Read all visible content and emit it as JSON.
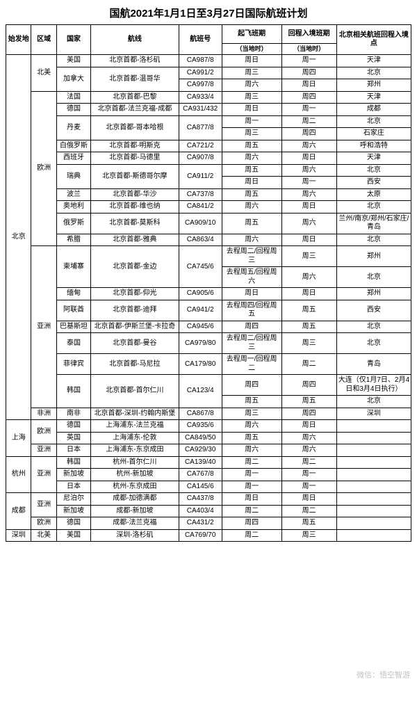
{
  "title": "国航2021年1月1日至3月27日国际航班计划",
  "watermark": "微信：悟空智游",
  "headers": {
    "origin": "始发地",
    "region": "区域",
    "country": "国家",
    "route": "航线",
    "flight": "航班号",
    "dep": "起飞班期",
    "dep_sub": "（当地时）",
    "ret": "回程入境班期",
    "ret_sub": "（当地时）",
    "entry": "北京相关航班回程入境点"
  },
  "rows": [
    {
      "origin": "北京",
      "origin_rs": 25,
      "region": "北美",
      "region_rs": 3,
      "country": "美国",
      "country_rs": 1,
      "route": "北京首都-洛杉矶",
      "route_rs": 1,
      "flight": "CA987/8",
      "dep": "周日",
      "ret": "周一",
      "entry": "天津"
    },
    {
      "country": "加拿大",
      "country_rs": 2,
      "route": "北京首都-温哥华",
      "route_rs": 2,
      "flight": "CA991/2",
      "dep": "周三",
      "ret": "周四",
      "entry": "北京"
    },
    {
      "flight": "CA997/8",
      "dep": "周六",
      "ret": "周日",
      "entry": "郑州"
    },
    {
      "region": "欧洲",
      "region_rs": 12,
      "country": "法国",
      "country_rs": 1,
      "route": "北京首都-巴黎",
      "route_rs": 1,
      "flight": "CA933/4",
      "dep": "周三",
      "ret": "周四",
      "entry": "天津"
    },
    {
      "country": "德国",
      "country_rs": 1,
      "route": "北京首都-法兰克福-成都",
      "route_rs": 1,
      "flight": "CA931/432",
      "dep": "周日",
      "ret": "周一",
      "entry": "成都"
    },
    {
      "country": "丹麦",
      "country_rs": 2,
      "route": "北京首都-哥本哈根",
      "route_rs": 2,
      "flight": "CA877/8",
      "flight_rs": 2,
      "dep": "周一",
      "ret": "周二",
      "entry": "北京"
    },
    {
      "dep": "周三",
      "ret": "周四",
      "entry": "石家庄"
    },
    {
      "country": "白俄罗斯",
      "country_rs": 1,
      "route": "北京首都-明斯克",
      "route_rs": 1,
      "flight": "CA721/2",
      "dep": "周五",
      "ret": "周六",
      "entry": "呼和浩特"
    },
    {
      "country": "西班牙",
      "country_rs": 1,
      "route": "北京首都-马德里",
      "route_rs": 1,
      "flight": "CA907/8",
      "dep": "周六",
      "ret": "周日",
      "entry": "天津"
    },
    {
      "country": "瑞典",
      "country_rs": 2,
      "route": "北京首都-斯德哥尔摩",
      "route_rs": 2,
      "flight": "CA911/2",
      "flight_rs": 2,
      "dep": "周五",
      "ret": "周六",
      "entry": "北京"
    },
    {
      "dep": "周日",
      "ret": "周一",
      "entry": "西安"
    },
    {
      "country": "波兰",
      "country_rs": 1,
      "route": "北京首都-华沙",
      "route_rs": 1,
      "flight": "CA737/8",
      "dep": "周五",
      "ret": "周六",
      "entry": "太原"
    },
    {
      "country": "奥地利",
      "country_rs": 1,
      "route": "北京首都-维也纳",
      "route_rs": 1,
      "flight": "CA841/2",
      "dep": "周六",
      "ret": "周日",
      "entry": "北京"
    },
    {
      "country": "俄罗斯",
      "country_rs": 1,
      "route": "北京首都-莫斯科",
      "route_rs": 1,
      "flight": "CA909/10",
      "dep": "周五",
      "ret": "周六",
      "entry": "兰州/南京/郑州/石家庄/青岛"
    },
    {
      "country": "希腊",
      "country_rs": 1,
      "route": "北京首都-雅典",
      "route_rs": 1,
      "flight": "CA863/4",
      "dep": "周六",
      "ret": "周日",
      "entry": "北京"
    },
    {
      "region": "亚洲",
      "region_rs": 9,
      "country": "柬埔寨",
      "country_rs": 2,
      "route": "北京首都-金边",
      "route_rs": 2,
      "flight": "CA745/6",
      "flight_rs": 2,
      "dep": "去程周二/回程周三",
      "ret": "周三",
      "entry": "郑州"
    },
    {
      "dep": "去程周五/回程周六",
      "ret": "周六",
      "entry": "北京"
    },
    {
      "country": "缅甸",
      "country_rs": 1,
      "route": "北京首都-仰光",
      "route_rs": 1,
      "flight": "CA905/6",
      "dep": "周日",
      "ret": "周日",
      "entry": "郑州"
    },
    {
      "country": "阿联酋",
      "country_rs": 1,
      "route": "北京首都-迪拜",
      "route_rs": 1,
      "flight": "CA941/2",
      "dep": "去程周四/回程周五",
      "ret": "周五",
      "entry": "西安"
    },
    {
      "country": "巴基斯坦",
      "country_rs": 1,
      "route": "北京首都-伊斯兰堡-卡拉奇",
      "route_rs": 1,
      "flight": "CA945/6",
      "dep": "周四",
      "ret": "周五",
      "entry": "北京"
    },
    {
      "country": "泰国",
      "country_rs": 1,
      "route": "北京首都-曼谷",
      "route_rs": 1,
      "flight": "CA979/80",
      "dep": "去程周二/回程周三",
      "ret": "周三",
      "entry": "北京"
    },
    {
      "country": "菲律宾",
      "country_rs": 1,
      "route": "北京首都-马尼拉",
      "route_rs": 1,
      "flight": "CA179/80",
      "dep": "去程周一/回程周二",
      "ret": "周二",
      "entry": "青岛"
    },
    {
      "country": "韩国",
      "country_rs": 2,
      "route": "北京首都-首尔仁川",
      "route_rs": 2,
      "flight": "CA123/4",
      "flight_rs": 2,
      "dep": "周四",
      "ret": "周四",
      "entry": "大连（仅1月7日、2月4日和3月4日执行）"
    },
    {
      "dep": "周五",
      "ret": "周五",
      "entry": "北京"
    },
    {
      "region": "非洲",
      "region_rs": 1,
      "country": "南非",
      "country_rs": 1,
      "route": "北京首都-深圳-约翰内斯堡",
      "route_rs": 1,
      "flight": "CA867/8",
      "dep": "周三",
      "ret": "周四",
      "entry": "深圳"
    },
    {
      "origin": "上海",
      "origin_rs": 3,
      "region": "欧洲",
      "region_rs": 2,
      "country": "德国",
      "country_rs": 1,
      "route": "上海浦东-法兰克福",
      "route_rs": 1,
      "flight": "CA935/6",
      "dep": "周六",
      "ret": "周日",
      "entry": ""
    },
    {
      "country": "英国",
      "country_rs": 1,
      "route": "上海浦东-伦敦",
      "route_rs": 1,
      "flight": "CA849/50",
      "dep": "周五",
      "ret": "周六",
      "entry": ""
    },
    {
      "region": "亚洲",
      "region_rs": 1,
      "country": "日本",
      "country_rs": 1,
      "route": "上海浦东-东京成田",
      "route_rs": 1,
      "flight": "CA929/30",
      "dep": "周六",
      "ret": "周六",
      "entry": ""
    },
    {
      "origin": "杭州",
      "origin_rs": 3,
      "region": "亚洲",
      "region_rs": 3,
      "country": "韩国",
      "country_rs": 1,
      "route": "杭州-首尔仁川",
      "route_rs": 1,
      "flight": "CA139/40",
      "dep": "周二",
      "ret": "周二",
      "entry": ""
    },
    {
      "country": "新加坡",
      "country_rs": 1,
      "route": "杭州-新加坡",
      "route_rs": 1,
      "flight": "CA767/8",
      "dep": "周一",
      "ret": "周一",
      "entry": ""
    },
    {
      "country": "日本",
      "country_rs": 1,
      "route": "杭州-东京成田",
      "route_rs": 1,
      "flight": "CA145/6",
      "dep": "周一",
      "ret": "周一",
      "entry": ""
    },
    {
      "origin": "成都",
      "origin_rs": 3,
      "region": "亚洲",
      "region_rs": 2,
      "country": "尼泊尔",
      "country_rs": 1,
      "route": "成都-加德满都",
      "route_rs": 1,
      "flight": "CA437/8",
      "dep": "周日",
      "ret": "周日",
      "entry": ""
    },
    {
      "country": "新加坡",
      "country_rs": 1,
      "route": "成都-新加坡",
      "route_rs": 1,
      "flight": "CA403/4",
      "dep": "周二",
      "ret": "周二",
      "entry": ""
    },
    {
      "region": "欧洲",
      "region_rs": 1,
      "country": "德国",
      "country_rs": 1,
      "route": "成都-法兰克福",
      "route_rs": 1,
      "flight": "CA431/2",
      "dep": "周四",
      "ret": "周五",
      "entry": ""
    },
    {
      "origin": "深圳",
      "origin_rs": 1,
      "region": "北美",
      "region_rs": 1,
      "country": "美国",
      "country_rs": 1,
      "route": "深圳-洛杉矶",
      "route_rs": 1,
      "flight": "CA769/70",
      "dep": "周二",
      "ret": "周三",
      "entry": ""
    }
  ]
}
